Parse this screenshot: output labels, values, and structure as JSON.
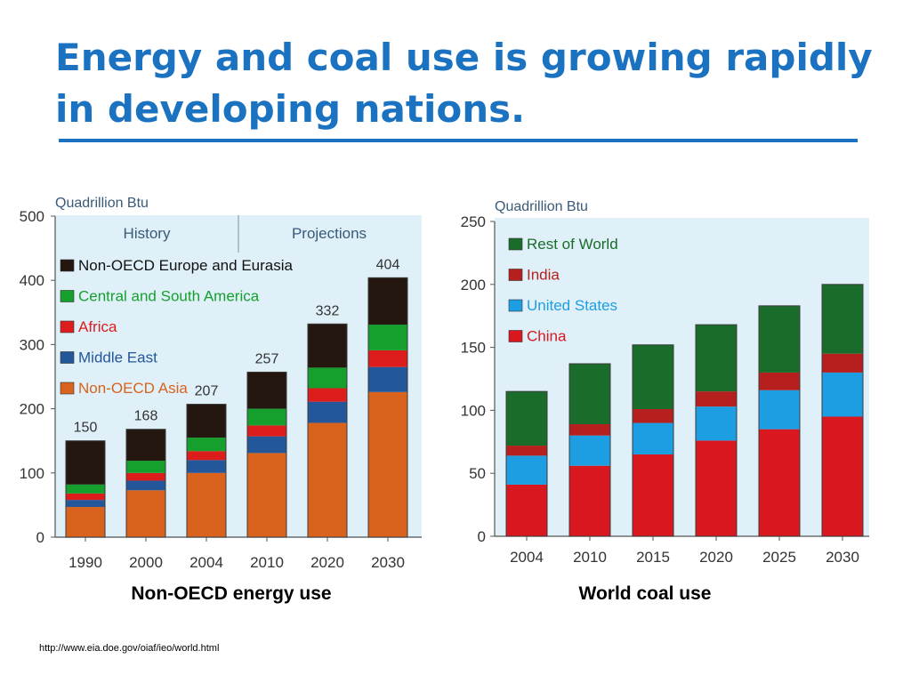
{
  "slide": {
    "title": "Energy and coal use is growing rapidly in developing  nations.",
    "source": "http://www.eia.doe.gov/oiaf/ieo/world.html"
  },
  "colors": {
    "title": "#1a72c0",
    "plot_bg": "#dff0f8",
    "black": "#231710",
    "green": "#15a02e",
    "red": "#dd1c1c",
    "navy": "#23579a",
    "orange": "#d9621c",
    "darkgreen": "#1a6c2a",
    "maroon": "#b51f1d",
    "skyblue": "#1d9ee2",
    "brightred": "#d8171f"
  },
  "chart_data": [
    {
      "type": "bar",
      "stacked": true,
      "caption": "Non-OECD energy use",
      "unit_label": "Quadrillion Btu",
      "sections": [
        "History",
        "Projections"
      ],
      "categories": [
        "1990",
        "2000",
        "2004",
        "2010",
        "2020",
        "2030"
      ],
      "totals": [
        150,
        168,
        207,
        257,
        332,
        404
      ],
      "ylim": [
        0,
        500
      ],
      "yticks": [
        0,
        100,
        200,
        300,
        400,
        500
      ],
      "legend_position": "top-left",
      "series": [
        {
          "name": "Non-OECD Asia",
          "color": "#d9621c",
          "values": [
            47,
            73,
            100,
            131,
            178,
            226
          ]
        },
        {
          "name": "Middle East",
          "color": "#23579a",
          "values": [
            11,
            15,
            20,
            26,
            33,
            39
          ]
        },
        {
          "name": "Africa",
          "color": "#dd1c1c",
          "values": [
            10,
            12,
            14,
            17,
            21,
            26
          ]
        },
        {
          "name": "Central and South America",
          "color": "#15a02e",
          "values": [
            14,
            19,
            21,
            26,
            32,
            40
          ]
        },
        {
          "name": "Non-OECD Europe and Eurasia",
          "color": "#231710",
          "values": [
            68,
            49,
            52,
            57,
            68,
            73
          ]
        }
      ]
    },
    {
      "type": "bar",
      "stacked": true,
      "caption": "World coal use",
      "unit_label": "Quadrillion Btu",
      "categories": [
        "2004",
        "2010",
        "2015",
        "2020",
        "2025",
        "2030"
      ],
      "ylim": [
        0,
        250
      ],
      "yticks": [
        0,
        50,
        100,
        150,
        200,
        250
      ],
      "legend_position": "top-left",
      "series": [
        {
          "name": "China",
          "color": "#d8171f",
          "values": [
            41,
            56,
            65,
            76,
            85,
            95
          ]
        },
        {
          "name": "United States",
          "color": "#1d9ee2",
          "values": [
            23,
            24,
            25,
            27,
            31,
            35
          ]
        },
        {
          "name": "India",
          "color": "#b51f1d",
          "values": [
            8,
            9,
            11,
            12,
            14,
            15
          ]
        },
        {
          "name": "Rest of World",
          "color": "#1a6c2a",
          "values": [
            43,
            48,
            51,
            53,
            53,
            55
          ]
        }
      ]
    }
  ]
}
